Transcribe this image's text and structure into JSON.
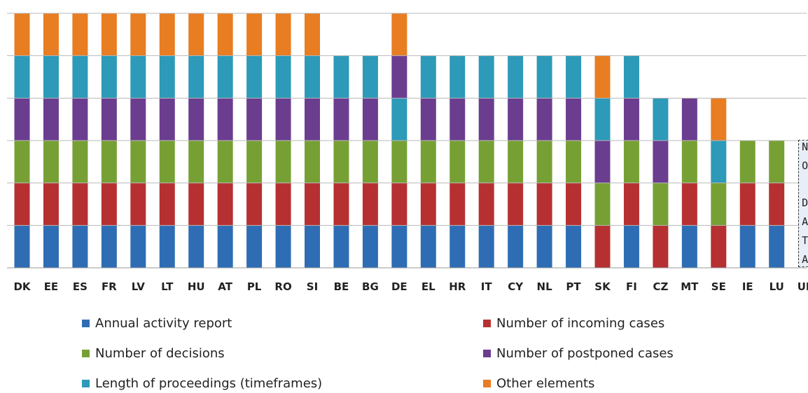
{
  "chart_data": {
    "type": "bar",
    "stacked": true,
    "categories": [
      "DK",
      "EE",
      "ES",
      "FR",
      "LV",
      "LT",
      "HU",
      "AT",
      "PL",
      "RO",
      "SI",
      "BE",
      "BG",
      "DE",
      "EL",
      "HR",
      "IT",
      "CY",
      "NL",
      "PT",
      "SK",
      "FI",
      "CZ",
      "MT",
      "SE",
      "IE",
      "LU",
      "UK"
    ],
    "series": [
      {
        "name": "Annual activity report",
        "color": "#2e6db4",
        "values": [
          1,
          1,
          1,
          1,
          1,
          1,
          1,
          1,
          1,
          1,
          1,
          1,
          1,
          1,
          1,
          1,
          1,
          1,
          1,
          1,
          0,
          1,
          0,
          1,
          0,
          1,
          1,
          0
        ]
      },
      {
        "name": "Number of incoming cases",
        "color": "#b63032",
        "values": [
          1,
          1,
          1,
          1,
          1,
          1,
          1,
          1,
          1,
          1,
          1,
          1,
          1,
          1,
          1,
          1,
          1,
          1,
          1,
          1,
          1,
          1,
          1,
          1,
          1,
          1,
          1,
          0
        ]
      },
      {
        "name": "Number of decisions",
        "color": "#77a034",
        "values": [
          1,
          1,
          1,
          1,
          1,
          1,
          1,
          1,
          1,
          1,
          1,
          1,
          1,
          1,
          1,
          1,
          1,
          1,
          1,
          1,
          1,
          1,
          1,
          1,
          1,
          1,
          1,
          0
        ]
      },
      {
        "name": "Number of postponed cases",
        "color": "#6b3d8f",
        "values": [
          1,
          1,
          1,
          1,
          1,
          1,
          1,
          1,
          1,
          1,
          1,
          1,
          1,
          1,
          1,
          1,
          1,
          1,
          1,
          1,
          1,
          1,
          1,
          1,
          0,
          0,
          0,
          0
        ]
      },
      {
        "name": "Length of proceedings (timeframes)",
        "color": "#2c9ab8",
        "values": [
          1,
          1,
          1,
          1,
          1,
          1,
          1,
          1,
          1,
          1,
          1,
          1,
          1,
          1,
          1,
          1,
          1,
          1,
          1,
          1,
          1,
          1,
          1,
          0,
          1,
          0,
          0,
          0
        ]
      },
      {
        "name": "Other elements",
        "color": "#e87d22",
        "values": [
          1,
          1,
          1,
          1,
          1,
          1,
          1,
          1,
          1,
          1,
          1,
          0,
          0,
          1,
          0,
          0,
          0,
          0,
          0,
          0,
          1,
          0,
          0,
          0,
          1,
          0,
          0,
          0
        ]
      }
    ],
    "stack_order": {
      "DE": [
        "Annual activity report",
        "Number of incoming cases",
        "Number of decisions",
        "Length of proceedings (timeframes)",
        "Number of postponed cases",
        "Other elements"
      ],
      "SK": [
        "Number of incoming cases",
        "Number of decisions",
        "Number of postponed cases",
        "Length of proceedings (timeframes)",
        "Other elements"
      ],
      "SE": [
        "Number of incoming cases",
        "Number of decisions",
        "Length of proceedings (timeframes)",
        "Other elements"
      ],
      "CZ": [
        "Number of incoming cases",
        "Number of decisions",
        "Number of postponed cases",
        "Length of proceedings (timeframes)"
      ]
    },
    "ylim": [
      0,
      6
    ],
    "grid": true,
    "legend_position": "bottom",
    "xlabel": "",
    "ylabel": "",
    "title": "",
    "annotations": [
      {
        "category": "UK",
        "text": "NO DATA",
        "letters": [
          "N",
          "O",
          "",
          "D",
          "A",
          "T",
          "A"
        ]
      }
    ]
  }
}
